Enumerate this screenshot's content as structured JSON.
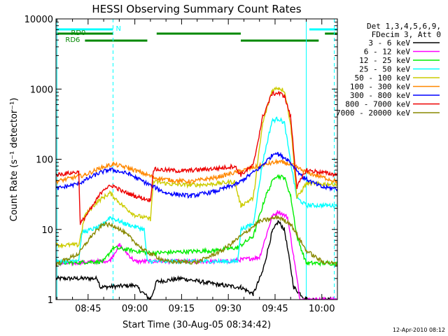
{
  "chart_data": {
    "type": "line",
    "title": "HESSI Observing Summary Count Rates",
    "xlabel": "Start Time (30-Aug-05 08:34:42)",
    "ylabel": "Count Rate (s⁻¹ detector⁻¹)",
    "ylog": true,
    "ylim": [
      1,
      10000
    ],
    "xlim": [
      "08:34:42",
      "10:05:00"
    ],
    "x_ticks": [
      "08:45",
      "09:00",
      "09:15",
      "09:30",
      "09:45",
      "10:00"
    ],
    "y_ticks": [
      "1",
      "10",
      "100",
      "1000",
      "10000"
    ],
    "legend_header": [
      "Det 1,3,4,5,6,9,",
      "FDecim 3, Att 0"
    ],
    "legend_position": "right",
    "timestamp": "12-Apr-2010 08:12",
    "series": [
      {
        "name": "3 - 6 keV",
        "color": "#000000",
        "points": [
          [
            "08:34:42",
            2
          ],
          [
            "08:48",
            2
          ],
          [
            "08:49",
            1.5
          ],
          [
            "09:00",
            1.6
          ],
          [
            "09:05",
            1
          ],
          [
            "09:07",
            1.8
          ],
          [
            "09:15",
            2
          ],
          [
            "09:28",
            1.6
          ],
          [
            "09:34",
            1.5
          ],
          [
            "09:38",
            1.2
          ],
          [
            "09:41",
            2.5
          ],
          [
            "09:44",
            9
          ],
          [
            "09:46",
            13
          ],
          [
            "09:48",
            10
          ],
          [
            "09:51",
            1.5
          ],
          [
            "09:55",
            1
          ],
          [
            "10:05",
            1
          ]
        ]
      },
      {
        "name": "6 - 12 keV",
        "color": "#ff00ff",
        "points": [
          [
            "08:34:42",
            3.2
          ],
          [
            "08:52",
            3.6
          ],
          [
            "08:55",
            6
          ],
          [
            "09:00",
            3.5
          ],
          [
            "09:30",
            3.5
          ],
          [
            "09:40",
            4
          ],
          [
            "09:44",
            15
          ],
          [
            "09:46",
            18
          ],
          [
            "09:49",
            15
          ],
          [
            "09:51",
            4
          ],
          [
            "09:53",
            1
          ],
          [
            "10:05",
            1
          ]
        ]
      },
      {
        "name": "12 - 25 keV",
        "color": "#00ee00",
        "points": [
          [
            "08:34:42",
            3.3
          ],
          [
            "08:50",
            3.5
          ],
          [
            "08:53",
            5.5
          ],
          [
            "09:05",
            4.6
          ],
          [
            "09:25",
            5
          ],
          [
            "09:33",
            5.5
          ],
          [
            "09:38",
            8
          ],
          [
            "09:42",
            30
          ],
          [
            "09:45",
            58
          ],
          [
            "09:48",
            55
          ],
          [
            "09:50",
            30
          ],
          [
            "09:52",
            8
          ],
          [
            "09:55",
            3.3
          ],
          [
            "10:05",
            3.3
          ]
        ]
      },
      {
        "name": "25 - 50 keV",
        "color": "#00ffff",
        "points": [
          [
            "08:34:42",
            3.5
          ],
          [
            "08:42",
            3.7
          ],
          [
            "08:43",
            9
          ],
          [
            "08:49",
            11
          ],
          [
            "08:52",
            15
          ],
          [
            "08:57",
            12
          ],
          [
            "09:03",
            10
          ],
          [
            "09:04",
            3.5
          ],
          [
            "09:33",
            3.5
          ],
          [
            "09:34",
            10
          ],
          [
            "09:38",
            12
          ],
          [
            "09:41",
            90
          ],
          [
            "09:44",
            350
          ],
          [
            "09:46",
            380
          ],
          [
            "09:48",
            330
          ],
          [
            "09:50",
            90
          ],
          [
            "09:52",
            28
          ],
          [
            "09:55",
            22
          ],
          [
            "10:05",
            22
          ]
        ]
      },
      {
        "name": "50 - 100 keV",
        "color": "#cccc00",
        "points": [
          [
            "08:34:42",
            6
          ],
          [
            "08:42",
            6
          ],
          [
            "08:44",
            16
          ],
          [
            "08:48",
            25
          ],
          [
            "08:52",
            33
          ],
          [
            "08:56",
            22
          ],
          [
            "09:00",
            16
          ],
          [
            "09:05",
            14
          ],
          [
            "09:06",
            48
          ],
          [
            "09:12",
            44
          ],
          [
            "09:18",
            43
          ],
          [
            "09:24",
            44
          ],
          [
            "09:32",
            48
          ],
          [
            "09:34",
            22
          ],
          [
            "09:38",
            28
          ],
          [
            "09:41",
            320
          ],
          [
            "09:44",
            950
          ],
          [
            "09:46",
            1050
          ],
          [
            "09:48",
            950
          ],
          [
            "09:50",
            320
          ],
          [
            "09:52",
            28
          ],
          [
            "09:55",
            45
          ],
          [
            "10:05",
            44
          ]
        ]
      },
      {
        "name": "100 - 300 keV",
        "color": "#ff8800",
        "points": [
          [
            "08:34:42",
            48
          ],
          [
            "08:44",
            60
          ],
          [
            "08:49",
            75
          ],
          [
            "08:53",
            85
          ],
          [
            "08:58",
            75
          ],
          [
            "09:04",
            60
          ],
          [
            "09:06",
            55
          ],
          [
            "09:12",
            50
          ],
          [
            "09:18",
            48
          ],
          [
            "09:26",
            55
          ],
          [
            "09:34",
            68
          ],
          [
            "09:42",
            85
          ],
          [
            "09:46",
            92
          ],
          [
            "09:50",
            85
          ],
          [
            "09:55",
            65
          ],
          [
            "10:05",
            48
          ]
        ]
      },
      {
        "name": "300 - 800 keV",
        "color": "#0000ff",
        "points": [
          [
            "08:34:42",
            38
          ],
          [
            "08:42",
            45
          ],
          [
            "08:48",
            62
          ],
          [
            "08:52",
            72
          ],
          [
            "08:58",
            62
          ],
          [
            "09:04",
            45
          ],
          [
            "09:10",
            33
          ],
          [
            "09:18",
            30
          ],
          [
            "09:26",
            35
          ],
          [
            "09:33",
            45
          ],
          [
            "09:40",
            75
          ],
          [
            "09:45",
            125
          ],
          [
            "09:49",
            100
          ],
          [
            "09:54",
            55
          ],
          [
            "10:00",
            40
          ],
          [
            "10:05",
            38
          ]
        ]
      },
      {
        "name": "800 - 7000 keV",
        "color": "#ee0000",
        "points": [
          [
            "08:34:42",
            60
          ],
          [
            "08:42",
            66
          ],
          [
            "08:42:30",
            12
          ],
          [
            "08:46",
            20
          ],
          [
            "08:50",
            38
          ],
          [
            "08:53",
            42
          ],
          [
            "08:56",
            35
          ],
          [
            "09:00",
            30
          ],
          [
            "09:05",
            26
          ],
          [
            "09:06",
            72
          ],
          [
            "09:15",
            68
          ],
          [
            "09:28",
            75
          ],
          [
            "09:32",
            80
          ],
          [
            "09:34",
            60
          ],
          [
            "09:38",
            82
          ],
          [
            "09:41",
            400
          ],
          [
            "09:44",
            850
          ],
          [
            "09:46",
            880
          ],
          [
            "09:48",
            800
          ],
          [
            "09:50",
            400
          ],
          [
            "09:52",
            40
          ],
          [
            "09:55",
            70
          ],
          [
            "10:05",
            60
          ]
        ]
      },
      {
        "name": "7000 - 20000 keV",
        "color": "#888800",
        "points": [
          [
            "08:34:42",
            3.2
          ],
          [
            "08:42",
            4.5
          ],
          [
            "08:46",
            8
          ],
          [
            "08:50",
            12
          ],
          [
            "08:54",
            11
          ],
          [
            "08:58",
            8
          ],
          [
            "09:03",
            5
          ],
          [
            "09:10",
            3.5
          ],
          [
            "09:20",
            3.4
          ],
          [
            "09:28",
            5
          ],
          [
            "09:34",
            8
          ],
          [
            "09:40",
            13
          ],
          [
            "09:46",
            15
          ],
          [
            "09:50",
            12
          ],
          [
            "09:55",
            5
          ],
          [
            "10:00",
            3.5
          ],
          [
            "10:05",
            3.2
          ]
        ]
      }
    ],
    "status_bars": [
      {
        "label": "N",
        "color": "#00ffff",
        "segments": [
          [
            "08:34:42",
            "08:53"
          ],
          [
            "09:56",
            "10:05"
          ]
        ]
      },
      {
        "label": "",
        "color": "#008800",
        "segments": [
          [
            "08:34:42",
            "08:53"
          ],
          [
            "09:07",
            "09:34"
          ],
          [
            "10:01",
            "10:05"
          ]
        ]
      },
      {
        "label": "RD0",
        "color": "#008800",
        "segments": [
          [
            "08:34:42",
            "08:44"
          ]
        ]
      },
      {
        "label": "RD6",
        "color": "#008800",
        "segments": [
          [
            "08:44",
            "09:04"
          ],
          [
            "09:34",
            "09:59"
          ]
        ]
      }
    ],
    "vertical_markers": [
      {
        "time": "08:35",
        "color": "#00ffff",
        "style": "solid"
      },
      {
        "time": "08:53",
        "color": "#00ffff",
        "style": "dashed"
      },
      {
        "time": "09:55",
        "color": "#00ffff",
        "style": "solid"
      },
      {
        "time": "10:04",
        "color": "#00ffff",
        "style": "dashed"
      }
    ]
  }
}
